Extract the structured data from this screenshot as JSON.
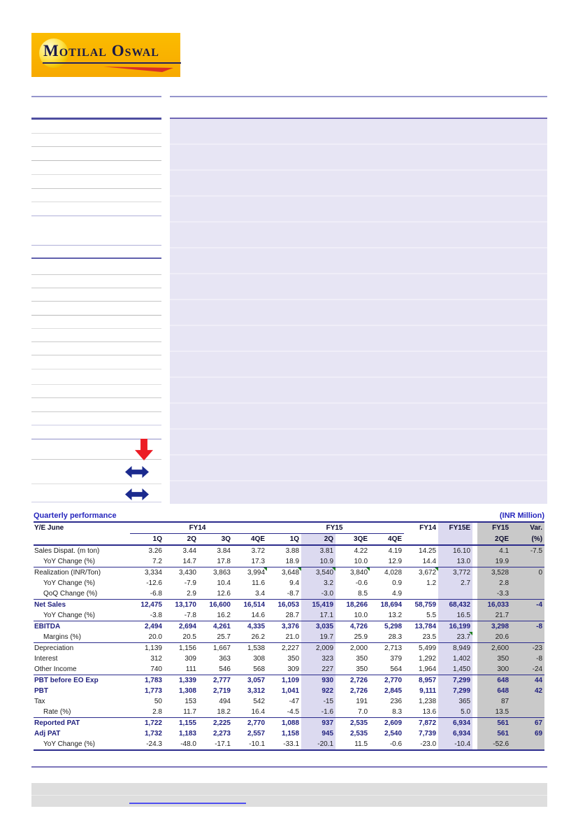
{
  "brand": {
    "name": "Motilal Oswal"
  },
  "unit_note": "(INR Million)",
  "colors": {
    "accent_navy": "#2b2b8c",
    "title_blue": "#2626bd",
    "highlight_lavender": "#dcdaf0",
    "column_gray": "#c9c9c9",
    "logo_orange": "#f8ae00",
    "arrow_red": "#ec1c24",
    "arrow_blue": "#1b2a8e",
    "flag_green": "#1e7e1e"
  },
  "table": {
    "title": "Quarterly performance",
    "ye_label": "Y/E June",
    "group_fy14": "FY14",
    "group_fy15": "FY15",
    "annual_fy14": "FY14",
    "annual_fy15e": "FY15E",
    "col_fy15": "FY15",
    "col_var": "Var.",
    "sub_headers": [
      "1Q",
      "2Q",
      "3Q",
      "4QE",
      "1Q",
      "2Q",
      "3QE",
      "4QE",
      "",
      "",
      "2QE",
      "(%)"
    ],
    "rows": [
      {
        "label": "Sales Dispat. (m ton)",
        "style": "normal",
        "sep": false,
        "values": [
          "3.26",
          "3.44",
          "3.84",
          "3.72",
          "3.88",
          "3.81",
          "4.22",
          "4.19",
          "14.25",
          "16.10",
          "4.1",
          "-7.5"
        ]
      },
      {
        "label": "YoY Change (%)",
        "style": "sub",
        "sep": false,
        "values": [
          "7.2",
          "14.7",
          "17.8",
          "17.3",
          "18.9",
          "10.9",
          "10.0",
          "12.9",
          "14.4",
          "13.0",
          "19.9",
          ""
        ]
      },
      {
        "label": "Realization (INR/Ton)",
        "style": "normal",
        "sep": true,
        "flags": [
          3,
          4,
          5,
          6,
          8
        ],
        "values": [
          "3,334",
          "3,430",
          "3,863",
          "3,994",
          "3,648",
          "3,540",
          "3,840",
          "4,028",
          "3,672",
          "3,772",
          "3,528",
          "0"
        ]
      },
      {
        "label": "YoY Change (%)",
        "style": "sub",
        "sep": false,
        "values": [
          "-12.6",
          "-7.9",
          "10.4",
          "11.6",
          "9.4",
          "3.2",
          "-0.6",
          "0.9",
          "1.2",
          "2.7",
          "2.8",
          ""
        ]
      },
      {
        "label": "QoQ Change (%)",
        "style": "sub",
        "sep": false,
        "values": [
          "-6.8",
          "2.9",
          "12.6",
          "3.4",
          "-8.7",
          "-3.0",
          "8.5",
          "4.9",
          "",
          "",
          "-3.3",
          ""
        ]
      },
      {
        "label": "Net Sales",
        "style": "bold",
        "sep": true,
        "values": [
          "12,475",
          "13,170",
          "16,600",
          "16,514",
          "16,053",
          "15,419",
          "18,266",
          "18,694",
          "58,759",
          "68,432",
          "16,033",
          "-4"
        ]
      },
      {
        "label": "YoY Change (%)",
        "style": "sub",
        "sep": false,
        "values": [
          "-3.8",
          "-7.8",
          "16.2",
          "14.6",
          "28.7",
          "17.1",
          "10.0",
          "13.2",
          "5.5",
          "16.5",
          "21.7",
          ""
        ]
      },
      {
        "label": "EBITDA",
        "style": "bold",
        "sep": true,
        "values": [
          "2,494",
          "2,694",
          "4,261",
          "4,335",
          "3,376",
          "3,035",
          "4,726",
          "5,298",
          "13,784",
          "16,199",
          "3,298",
          "-8"
        ]
      },
      {
        "label": "Margins (%)",
        "style": "sub",
        "sep": false,
        "flags": [
          9
        ],
        "values": [
          "20.0",
          "20.5",
          "25.7",
          "26.2",
          "21.0",
          "19.7",
          "25.9",
          "28.3",
          "23.5",
          "23.7",
          "20.6",
          ""
        ]
      },
      {
        "label": "Depreciation",
        "style": "normal",
        "sep": true,
        "values": [
          "1,139",
          "1,156",
          "1,667",
          "1,538",
          "2,227",
          "2,009",
          "2,000",
          "2,713",
          "5,499",
          "8,949",
          "2,600",
          "-23"
        ]
      },
      {
        "label": "Interest",
        "style": "normal",
        "sep": false,
        "values": [
          "312",
          "309",
          "363",
          "308",
          "350",
          "323",
          "350",
          "379",
          "1,292",
          "1,402",
          "350",
          "-8"
        ]
      },
      {
        "label": "Other Income",
        "style": "normal",
        "sep": false,
        "values": [
          "740",
          "111",
          "546",
          "568",
          "309",
          "227",
          "350",
          "564",
          "1,964",
          "1,450",
          "300",
          "-24"
        ]
      },
      {
        "label": "PBT before EO Exp",
        "style": "bold",
        "sep": true,
        "values": [
          "1,783",
          "1,339",
          "2,777",
          "3,057",
          "1,109",
          "930",
          "2,726",
          "2,770",
          "8,957",
          "7,299",
          "648",
          "44"
        ]
      },
      {
        "label": "PBT",
        "style": "bold",
        "sep": false,
        "values": [
          "1,773",
          "1,308",
          "2,719",
          "3,312",
          "1,041",
          "922",
          "2,726",
          "2,845",
          "9,111",
          "7,299",
          "648",
          "42"
        ]
      },
      {
        "label": "Tax",
        "style": "normal",
        "sep": false,
        "values": [
          "50",
          "153",
          "494",
          "542",
          "-47",
          "-15",
          "191",
          "236",
          "1,238",
          "365",
          "87",
          ""
        ]
      },
      {
        "label": "Rate (%)",
        "style": "sub",
        "sep": false,
        "values": [
          "2.8",
          "11.7",
          "18.2",
          "16.4",
          "-4.5",
          "-1.6",
          "7.0",
          "8.3",
          "13.6",
          "5.0",
          "13.5",
          ""
        ]
      },
      {
        "label": "Reported PAT",
        "style": "bold",
        "sep": true,
        "values": [
          "1,722",
          "1,155",
          "2,225",
          "2,770",
          "1,088",
          "937",
          "2,535",
          "2,609",
          "7,872",
          "6,934",
          "561",
          "67"
        ]
      },
      {
        "label": "Adj PAT",
        "style": "bold",
        "sep": false,
        "values": [
          "1,732",
          "1,183",
          "2,273",
          "2,557",
          "1,158",
          "945",
          "2,535",
          "2,540",
          "7,739",
          "6,934",
          "561",
          "69"
        ]
      },
      {
        "label": "YoY Change (%)",
        "style": "sub",
        "sep": false,
        "values": [
          "-24.3",
          "-48.0",
          "-17.1",
          "-10.1",
          "-33.1",
          "-20.1",
          "11.5",
          "-0.6",
          "-23.0",
          "-10.4",
          "-52.6",
          ""
        ]
      }
    ]
  }
}
